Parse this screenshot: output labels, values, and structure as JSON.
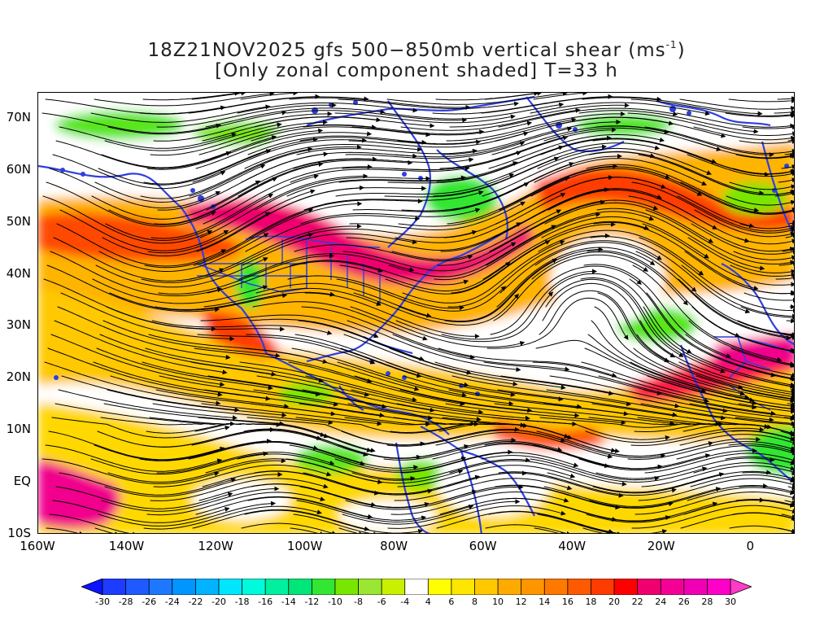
{
  "title": {
    "line1_text": "18Z21NOV2025 gfs 500−850mb vertical shear (ms",
    "line1_exp": "-1",
    "line1_close": ")",
    "line2": "[Only zonal component shaded] T=33 h"
  },
  "map": {
    "lon_range": [
      -160,
      10
    ],
    "lat_range": [
      -10,
      75
    ],
    "lat_labels": [
      {
        "lat": 70,
        "text": "70N"
      },
      {
        "lat": 60,
        "text": "60N"
      },
      {
        "lat": 50,
        "text": "50N"
      },
      {
        "lat": 40,
        "text": "40N"
      },
      {
        "lat": 30,
        "text": "30N"
      },
      {
        "lat": 20,
        "text": "20N"
      },
      {
        "lat": 10,
        "text": "10N"
      },
      {
        "lat": 0,
        "text": "EQ"
      },
      {
        "lat": -10,
        "text": "10S"
      }
    ],
    "lon_labels": [
      {
        "lon": -160,
        "text": "160W"
      },
      {
        "lon": -140,
        "text": "140W"
      },
      {
        "lon": -120,
        "text": "120W"
      },
      {
        "lon": -100,
        "text": "100W"
      },
      {
        "lon": -80,
        "text": "80W"
      },
      {
        "lon": -60,
        "text": "60W"
      },
      {
        "lon": -40,
        "text": "40W"
      },
      {
        "lon": -20,
        "text": "20W"
      },
      {
        "lon": 0,
        "text": "0"
      }
    ],
    "coastline_color": "#2f3fe0",
    "streamline_color": "#000000"
  },
  "colorbar": {
    "levels": [
      "-30",
      "-28",
      "-26",
      "-24",
      "-22",
      "-20",
      "-18",
      "-16",
      "-14",
      "-12",
      "-10",
      "-8",
      "-6",
      "-4",
      "4",
      "6",
      "8",
      "10",
      "12",
      "14",
      "16",
      "18",
      "20",
      "22",
      "24",
      "26",
      "28",
      "30"
    ],
    "colors": [
      "#0a14ff",
      "#1e3cff",
      "#1e5aff",
      "#1e78ff",
      "#0096ff",
      "#00b4ff",
      "#00e6ff",
      "#00fadc",
      "#00f0a0",
      "#00e678",
      "#32e632",
      "#78e600",
      "#9ae632",
      "#c8f000",
      "#ffffff",
      "#ffff00",
      "#ffe600",
      "#ffc800",
      "#ffaa00",
      "#ff9600",
      "#ff7800",
      "#ff5a00",
      "#ff3c00",
      "#ff0000",
      "#f0006e",
      "#f50096",
      "#f000b4",
      "#ff00c8",
      "#ff3cc8"
    ]
  }
}
